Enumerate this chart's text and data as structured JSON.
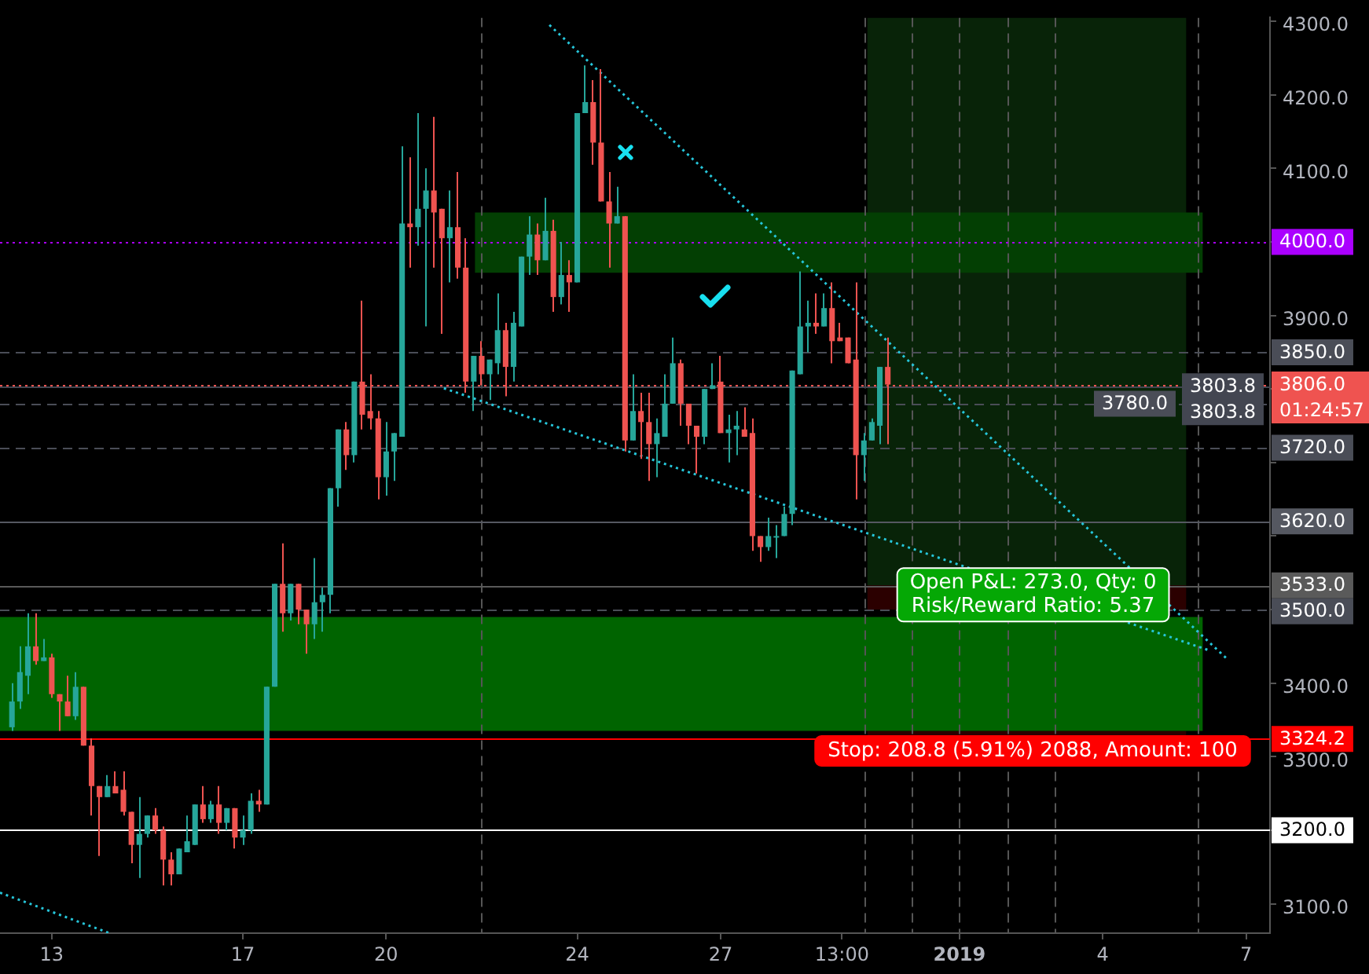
{
  "chart_data": {
    "type": "candlestick",
    "x": [
      "2018-12-12T04:00",
      "2018-12-12T08:00",
      "2018-12-12T12:00",
      "2018-12-12T16:00",
      "2018-12-12T20:00",
      "2018-12-13T00:00",
      "2018-12-13T04:00",
      "2018-12-13T08:00",
      "2018-12-13T12:00",
      "2018-12-13T16:00",
      "2018-12-13T20:00",
      "2018-12-14T00:00",
      "2018-12-14T04:00",
      "2018-12-14T08:00",
      "2018-12-14T12:00",
      "2018-12-14T16:00",
      "2018-12-14T20:00",
      "2018-12-15T00:00",
      "2018-12-15T04:00",
      "2018-12-15T08:00",
      "2018-12-15T12:00",
      "2018-12-15T16:00",
      "2018-12-15T20:00",
      "2018-12-16T00:00",
      "2018-12-16T04:00",
      "2018-12-16T08:00",
      "2018-12-16T12:00",
      "2018-12-16T16:00",
      "2018-12-16T20:00",
      "2018-12-17T00:00",
      "2018-12-17T04:00",
      "2018-12-17T08:00",
      "2018-12-17T12:00",
      "2018-12-17T16:00",
      "2018-12-17T20:00",
      "2018-12-18T00:00",
      "2018-12-18T04:00",
      "2018-12-18T08:00",
      "2018-12-18T12:00",
      "2018-12-18T16:00",
      "2018-12-18T20:00",
      "2018-12-19T00:00",
      "2018-12-19T04:00",
      "2018-12-19T08:00",
      "2018-12-19T12:00",
      "2018-12-19T16:00",
      "2018-12-19T20:00",
      "2018-12-20T00:00",
      "2018-12-20T04:00",
      "2018-12-20T08:00",
      "2018-12-20T12:00",
      "2018-12-20T16:00",
      "2018-12-20T20:00",
      "2018-12-21T00:00",
      "2018-12-21T04:00",
      "2018-12-21T08:00",
      "2018-12-21T12:00",
      "2018-12-21T16:00",
      "2018-12-21T20:00",
      "2018-12-22T00:00",
      "2018-12-22T04:00",
      "2018-12-22T08:00",
      "2018-12-22T12:00",
      "2018-12-22T16:00",
      "2018-12-22T20:00",
      "2018-12-23T00:00",
      "2018-12-23T04:00",
      "2018-12-23T08:00",
      "2018-12-23T12:00",
      "2018-12-23T16:00",
      "2018-12-23T20:00",
      "2018-12-24T00:00",
      "2018-12-24T04:00",
      "2018-12-24T08:00",
      "2018-12-24T12:00",
      "2018-12-24T16:00",
      "2018-12-24T20:00",
      "2018-12-25T00:00",
      "2018-12-25T04:00",
      "2018-12-25T08:00",
      "2018-12-25T12:00",
      "2018-12-25T16:00",
      "2018-12-25T20:00",
      "2018-12-26T00:00",
      "2018-12-26T04:00",
      "2018-12-26T08:00",
      "2018-12-26T12:00",
      "2018-12-26T16:00",
      "2018-12-26T20:00",
      "2018-12-27T00:00",
      "2018-12-27T04:00",
      "2018-12-27T08:00",
      "2018-12-27T12:00",
      "2018-12-27T16:00",
      "2018-12-27T20:00",
      "2018-12-28T00:00",
      "2018-12-28T04:00",
      "2018-12-28T08:00",
      "2018-12-28T12:00",
      "2018-12-28T16:00",
      "2018-12-28T20:00",
      "2018-12-29T00:00",
      "2018-12-29T04:00",
      "2018-12-29T08:00",
      "2018-12-29T12:00",
      "2018-12-29T16:00",
      "2018-12-29T20:00",
      "2018-12-30T00:00",
      "2018-12-30T04:00",
      "2018-12-30T08:00",
      "2018-12-30T12:00"
    ],
    "ohlc": [
      [
        3340,
        3400,
        3335,
        3375
      ],
      [
        3375,
        3450,
        3365,
        3415
      ],
      [
        3410,
        3495,
        3385,
        3450
      ],
      [
        3450,
        3495,
        3425,
        3430
      ],
      [
        3430,
        3460,
        3430,
        3435
      ],
      [
        3435,
        3440,
        3380,
        3385
      ],
      [
        3385,
        3385,
        3335,
        3375
      ],
      [
        3375,
        3410,
        3355,
        3355
      ],
      [
        3355,
        3415,
        3350,
        3395
      ],
      [
        3395,
        3395,
        3315,
        3315
      ],
      [
        3315,
        3325,
        3220,
        3260
      ],
      [
        3260,
        3260,
        3165,
        3245
      ],
      [
        3245,
        3275,
        3245,
        3260
      ],
      [
        3260,
        3280,
        3250,
        3250
      ],
      [
        3255,
        3280,
        3220,
        3225
      ],
      [
        3225,
        3225,
        3155,
        3180
      ],
      [
        3180,
        3245,
        3135,
        3195
      ],
      [
        3195,
        3220,
        3190,
        3220
      ],
      [
        3220,
        3230,
        3195,
        3200
      ],
      [
        3200,
        3205,
        3125,
        3160
      ],
      [
        3160,
        3170,
        3125,
        3140
      ],
      [
        3140,
        3175,
        3140,
        3175
      ],
      [
        3170,
        3220,
        3170,
        3185
      ],
      [
        3180,
        3235,
        3180,
        3235
      ],
      [
        3235,
        3260,
        3210,
        3215
      ],
      [
        3215,
        3240,
        3210,
        3235
      ],
      [
        3235,
        3260,
        3195,
        3210
      ],
      [
        3210,
        3230,
        3200,
        3230
      ],
      [
        3230,
        3230,
        3175,
        3190
      ],
      [
        3190,
        3220,
        3180,
        3200
      ],
      [
        3200,
        3250,
        3195,
        3240
      ],
      [
        3240,
        3255,
        3225,
        3235
      ],
      [
        3235,
        3395,
        3235,
        3395
      ],
      [
        3395,
        3535,
        3395,
        3535
      ],
      [
        3535,
        3590,
        3470,
        3495
      ],
      [
        3495,
        3535,
        3485,
        3535
      ],
      [
        3535,
        3535,
        3480,
        3500
      ],
      [
        3500,
        3500,
        3440,
        3480
      ],
      [
        3480,
        3570,
        3460,
        3510
      ],
      [
        3510,
        3530,
        3470,
        3520
      ],
      [
        3520,
        3665,
        3495,
        3665
      ],
      [
        3665,
        3745,
        3640,
        3745
      ],
      [
        3745,
        3755,
        3690,
        3710
      ],
      [
        3710,
        3810,
        3700,
        3810
      ],
      [
        3810,
        3920,
        3745,
        3765
      ],
      [
        3770,
        3820,
        3745,
        3760
      ],
      [
        3760,
        3770,
        3650,
        3680
      ],
      [
        3680,
        3755,
        3655,
        3715
      ],
      [
        3715,
        3740,
        3675,
        3740
      ],
      [
        3735,
        4130,
        3735,
        4025
      ],
      [
        4025,
        4115,
        3965,
        4020
      ],
      [
        4020,
        4175,
        3995,
        4045
      ],
      [
        4045,
        4100,
        3885,
        4070
      ],
      [
        4070,
        4170,
        3965,
        4040
      ],
      [
        4045,
        4045,
        3875,
        4005
      ],
      [
        4005,
        4070,
        3945,
        4020
      ],
      [
        4020,
        4095,
        3950,
        3965
      ],
      [
        3965,
        4005,
        3795,
        3810
      ],
      [
        3810,
        3845,
        3770,
        3845
      ],
      [
        3845,
        3865,
        3805,
        3820
      ],
      [
        3820,
        3840,
        3785,
        3840
      ],
      [
        3835,
        3930,
        3820,
        3880
      ],
      [
        3880,
        3890,
        3790,
        3830
      ],
      [
        3830,
        3905,
        3810,
        3890
      ],
      [
        3885,
        3980,
        3885,
        3980
      ],
      [
        3980,
        4035,
        3955,
        4010
      ],
      [
        4010,
        4025,
        3955,
        3975
      ],
      [
        3975,
        4060,
        3975,
        4015
      ],
      [
        4015,
        4030,
        3905,
        3925
      ],
      [
        3925,
        4000,
        3915,
        3955
      ],
      [
        3955,
        3975,
        3905,
        3945
      ],
      [
        3945,
        4175,
        3945,
        4175
      ],
      [
        4175,
        4240,
        4175,
        4190
      ],
      [
        4190,
        4220,
        4105,
        4135
      ],
      [
        4135,
        4235,
        4055,
        4055
      ],
      [
        4055,
        4095,
        3965,
        4025
      ],
      [
        4025,
        4075,
        4025,
        4035
      ],
      [
        4035,
        4035,
        3715,
        3730
      ],
      [
        3730,
        3820,
        3730,
        3770
      ],
      [
        3770,
        3795,
        3705,
        3755
      ],
      [
        3755,
        3795,
        3675,
        3725
      ],
      [
        3725,
        3760,
        3680,
        3740
      ],
      [
        3735,
        3820,
        3735,
        3780
      ],
      [
        3780,
        3870,
        3780,
        3835
      ],
      [
        3835,
        3840,
        3750,
        3780
      ],
      [
        3780,
        3780,
        3725,
        3750
      ],
      [
        3750,
        3750,
        3685,
        3735
      ],
      [
        3735,
        3800,
        3725,
        3800
      ],
      [
        3800,
        3835,
        3800,
        3805
      ],
      [
        3810,
        3845,
        3740,
        3740
      ],
      [
        3740,
        3765,
        3700,
        3745
      ],
      [
        3745,
        3770,
        3710,
        3750
      ],
      [
        3745,
        3775,
        3735,
        3735
      ],
      [
        3740,
        3760,
        3580,
        3600
      ],
      [
        3600,
        3600,
        3565,
        3585
      ],
      [
        3585,
        3625,
        3580,
        3600
      ],
      [
        3600,
        3615,
        3570,
        3600
      ],
      [
        3600,
        3640,
        3600,
        3630
      ],
      [
        3630,
        3825,
        3615,
        3825
      ],
      [
        3820,
        3960,
        3820,
        3885
      ],
      [
        3885,
        3920,
        3850,
        3890
      ],
      [
        3890,
        3930,
        3875,
        3885
      ],
      [
        3885,
        3930,
        3885,
        3910
      ],
      [
        3910,
        3945,
        3835,
        3865
      ],
      [
        3870,
        3890,
        3865,
        3865
      ],
      [
        3870,
        3870,
        3835,
        3835
      ],
      [
        3840,
        3945,
        3650,
        3710
      ],
      [
        3710,
        3740,
        3675,
        3730
      ],
      [
        3730,
        3760,
        3730,
        3755
      ],
      [
        3750,
        3830,
        3725,
        3830
      ],
      [
        3830,
        3870,
        3725,
        3806
      ]
    ],
    "colors": [
      "#26a69a",
      "#26a69a",
      "#26a69a",
      "#ef5350",
      "#26a69a",
      "#ef5350",
      "#ef5350",
      "#ef5350",
      "#26a69a",
      "#ef5350",
      "#ef5350",
      "#ef5350",
      "#26a69a",
      "#ef5350",
      "#ef5350",
      "#ef5350",
      "#26a69a",
      "#26a69a",
      "#ef5350",
      "#ef5350",
      "#ef5350",
      "#26a69a",
      "#26a69a",
      "#26a69a",
      "#ef5350",
      "#26a69a",
      "#ef5350",
      "#26a69a",
      "#ef5350",
      "#26a69a",
      "#26a69a",
      "#ef5350",
      "#26a69a",
      "#26a69a",
      "#ef5350",
      "#26a69a",
      "#ef5350",
      "#ef5350",
      "#26a69a",
      "#26a69a",
      "#26a69a",
      "#26a69a",
      "#ef5350",
      "#26a69a",
      "#ef5350",
      "#ef5350",
      "#ef5350",
      "#26a69a",
      "#26a69a",
      "#26a69a",
      "#ef5350",
      "#26a69a",
      "#26a69a",
      "#ef5350",
      "#ef5350",
      "#26a69a",
      "#ef5350",
      "#ef5350",
      "#26a69a",
      "#ef5350",
      "#26a69a",
      "#26a69a",
      "#ef5350",
      "#26a69a",
      "#26a69a",
      "#26a69a",
      "#ef5350",
      "#26a69a",
      "#ef5350",
      "#26a69a",
      "#ef5350",
      "#26a69a",
      "#26a69a",
      "#ef5350",
      "#ef5350",
      "#ef5350",
      "#26a69a",
      "#ef5350",
      "#26a69a",
      "#ef5350",
      "#ef5350",
      "#26a69a",
      "#26a69a",
      "#26a69a",
      "#ef5350",
      "#ef5350",
      "#ef5350",
      "#26a69a",
      "#26a69a",
      "#ef5350",
      "#26a69a",
      "#26a69a",
      "#ef5350",
      "#ef5350",
      "#ef5350",
      "#26a69a",
      "#26a69a",
      "#26a69a",
      "#26a69a",
      "#26a69a",
      "#26a69a",
      "#ef5350",
      "#26a69a",
      "#ef5350",
      "#ef5350",
      "#ef5350",
      "#ef5350",
      "#26a69a",
      "#26a69a",
      "#26a69a",
      "#ef5350"
    ],
    "series": [
      {
        "type": "line",
        "color": "#26c6da",
        "line_style": "dotted",
        "marker": "none",
        "x": [
          "2018-12-23T10:00",
          "2019-01-06T14:00"
        ],
        "values": [
          4295,
          3434
        ]
      },
      {
        "type": "line",
        "color": "#26c6da",
        "line_style": "dotted",
        "marker": "none",
        "x": [
          "2018-12-21T05:00",
          "2019-01-06T06:00"
        ],
        "values": [
          3801,
          3444
        ]
      },
      {
        "type": "line",
        "color": "#26c6da",
        "line_style": "dotted",
        "marker": "none",
        "x": [
          "2018-12-11T22:00",
          "2018-12-14T05:00"
        ],
        "values": [
          3115,
          3060
        ]
      }
    ],
    "xlim": [
      "2018-12-11T22:00",
      "2019-01-07T12:00"
    ],
    "xticks": [
      {
        "value": "2018-12-13",
        "label": "13"
      },
      {
        "value": "2018-12-17",
        "label": "17"
      },
      {
        "value": "2018-12-20",
        "label": "20"
      },
      {
        "value": "2018-12-24",
        "label": "24"
      },
      {
        "value": "2018-12-27",
        "label": "27"
      },
      {
        "value": "2018-12-29T13:00",
        "label": "13:00"
      },
      {
        "value": "2019-01-01",
        "label": "2019"
      },
      {
        "value": "2019-01-04",
        "label": "4"
      },
      {
        "value": "2019-01-07",
        "label": "7"
      }
    ],
    "ylim": [
      3060,
      4305
    ],
    "yticks": [
      {
        "value": 3100,
        "label": "3100.0"
      },
      {
        "value": 3200,
        "label": null
      },
      {
        "value": 3300,
        "label": "3300.0"
      },
      {
        "value": 3400,
        "label": "3400.0"
      },
      {
        "value": 3500,
        "label": null
      },
      {
        "value": 3600,
        "label": null
      },
      {
        "value": 3700,
        "label": null
      },
      {
        "value": 3800,
        "label": null
      },
      {
        "value": 3900,
        "label": "3900.0"
      },
      {
        "value": 4000,
        "label": null
      },
      {
        "value": 4100,
        "label": "4100.0"
      },
      {
        "value": 4200,
        "label": "4200.0"
      },
      {
        "value": 4300,
        "label": "4300.0"
      }
    ],
    "bands": [
      {
        "axis": "y",
        "from": 3533,
        "to": 4305,
        "color": "#082308"
      },
      {
        "axis": "y",
        "from": 3500,
        "to": 3533,
        "color": "#2b0000"
      },
      {
        "axis": "y",
        "from": 3324.2,
        "to": 3335,
        "color": "#2b0000"
      },
      {
        "axis": "y",
        "from": 3335,
        "to": 3490,
        "color": "#006400"
      },
      {
        "axis": "y",
        "from": 3958,
        "to": 4040,
        "color": "#033f03"
      }
    ],
    "ref_lines": [
      {
        "axis": "x",
        "value": "2018-12-22",
        "color": "#555555",
        "line_style": "dashed"
      },
      {
        "axis": "x",
        "value": "2018-12-30",
        "color": "#555555",
        "line_style": "dashed"
      },
      {
        "axis": "x",
        "value": "2018-12-31",
        "color": "#555555",
        "line_style": "dashed"
      },
      {
        "axis": "x",
        "value": "2019-01-01",
        "color": "#555555",
        "line_style": "dashed"
      },
      {
        "axis": "x",
        "value": "2019-01-02",
        "color": "#555555",
        "line_style": "dashed"
      },
      {
        "axis": "x",
        "value": "2019-01-03",
        "color": "#555555",
        "line_style": "dashed"
      },
      {
        "axis": "x",
        "value": "2019-01-06",
        "color": "#555555",
        "line_style": "dashed"
      },
      {
        "axis": "y",
        "value": 4000,
        "label": "4000.0",
        "color": "#aa00ff",
        "line_style": "dotted"
      },
      {
        "axis": "y",
        "value": 3850,
        "label": "3850.0",
        "color": "#4a4d57",
        "line_style": "dashed"
      },
      {
        "axis": "y",
        "value": 3806,
        "label": "3806.0\n01:24:57",
        "color": "#ef5350",
        "line_style": "dotted"
      },
      {
        "axis": "y",
        "value": 3803.8,
        "label": "3803.8\n3803.8",
        "color": "#434651",
        "line_style": "solid"
      },
      {
        "axis": "y",
        "value": 3780,
        "label": "3780.0",
        "color": "#4a4d57",
        "line_style": "dashed"
      },
      {
        "axis": "y",
        "value": 3720,
        "label": "3720.0",
        "color": "#4a4d57",
        "line_style": "dashed"
      },
      {
        "axis": "y",
        "value": 3620,
        "label": "3620.0",
        "color": "#555861",
        "line_style": "solid"
      },
      {
        "axis": "y",
        "value": 3533,
        "label": "3533.0",
        "color": "#5a5a5a",
        "line_style": "solid"
      },
      {
        "axis": "y",
        "value": 3500,
        "label": "3500.0",
        "color": "#4a4d57",
        "line_style": "dashed"
      },
      {
        "axis": "y",
        "value": 3324.2,
        "label": "3324.2",
        "color": "#ff0000",
        "line_style": "solid"
      },
      {
        "axis": "y",
        "value": 3200,
        "label": "3200.0",
        "color": "#ffffff",
        "line_style": "solid"
      }
    ],
    "annotations": [
      {
        "text": "Open P&L: 273.0, Qty: 0\nRisk/Reward Ratio: 5.37",
        "x": "2019-01-02T13:00",
        "y": 3520
      },
      "Stop: 208.8 (5.91%) 2088, Amount: 100"
    ]
  }
}
